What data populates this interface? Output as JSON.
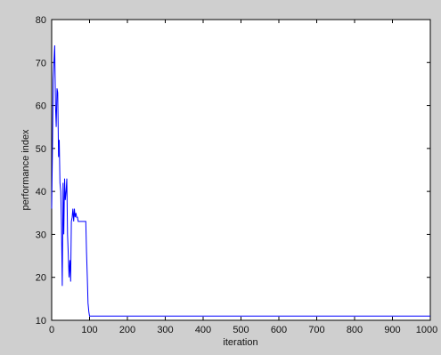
{
  "chart_data": {
    "type": "line",
    "title": "",
    "xlabel": "iteration",
    "ylabel": "performance index",
    "xlim": [
      0,
      1000
    ],
    "ylim": [
      10,
      80
    ],
    "xticks": [
      0,
      100,
      200,
      300,
      400,
      500,
      600,
      700,
      800,
      900,
      1000
    ],
    "yticks": [
      10,
      20,
      30,
      40,
      50,
      60,
      70,
      80
    ],
    "grid": false,
    "legend": "none",
    "line_color": "#0000ff",
    "series": [
      {
        "x": [
          0,
          2,
          4,
          6,
          8,
          10,
          12,
          14,
          16,
          18,
          20,
          22,
          24,
          26,
          28,
          30,
          32,
          34,
          36,
          38,
          40,
          42,
          44,
          46,
          48,
          50,
          52,
          54,
          56,
          58,
          60,
          62,
          64,
          66,
          68,
          70,
          80,
          90,
          92,
          94,
          96,
          98,
          100,
          102,
          1000
        ],
        "y": [
          36,
          50,
          66,
          70,
          74,
          60,
          55,
          64,
          63,
          48,
          52,
          42,
          40,
          32,
          18,
          42,
          30,
          43,
          38,
          40,
          43,
          30,
          25,
          20,
          24,
          19,
          33,
          34,
          36,
          33,
          36,
          34,
          35,
          34,
          34,
          33,
          33,
          33,
          26,
          20,
          14,
          12,
          11,
          11,
          11
        ]
      }
    ]
  }
}
